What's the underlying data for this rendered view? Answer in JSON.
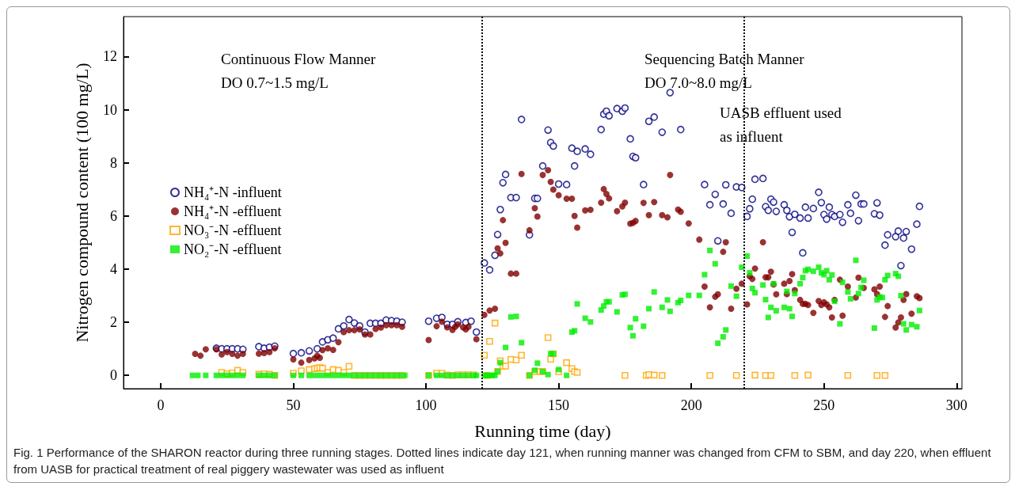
{
  "chart_data": {
    "type": "scatter",
    "xlabel": "Running time (day)",
    "ylabel": "Nitrogen compound content (100 mg/L)",
    "xlim": [
      -14,
      302
    ],
    "xticks": [
      0,
      50,
      100,
      150,
      200,
      250,
      300
    ],
    "ylim": [
      -0.5,
      13.5
    ],
    "yticks": [
      0,
      2,
      4,
      6,
      8,
      10,
      12
    ],
    "grid": false,
    "legend": "left",
    "ref_lines": [
      {
        "axis": "x",
        "value": 121,
        "line_style": "dotted",
        "color": "#000000"
      },
      {
        "axis": "x",
        "value": 220,
        "line_style": "dotted",
        "color": "#000000"
      }
    ],
    "annotations": [
      "Continuous Flow Manner\nDO 0.7~1.5 mg/L",
      "Sequencing Batch Manner\nDO 7.0~8.0 mg/L",
      "UASB effluent used\nas influent",
      "Fig. 1  Performance of the SHARON reactor during three running stages. Dotted lines indicate day 121, when running manner was changed from CFM to SBM, and day 220, when effluent from UASB for practical treatment of real piggery wastewater was used as influent"
    ],
    "series": [
      {
        "name": "NH₄⁺-N -influent",
        "color": "#000080",
        "marker": "circle",
        "x": [
          21,
          23,
          25,
          27,
          29,
          31,
          37,
          39,
          41,
          43,
          50,
          53,
          56,
          59,
          61,
          63,
          65,
          67,
          69,
          71,
          73,
          75,
          77,
          79,
          81,
          83,
          85,
          87,
          89,
          91,
          101,
          104,
          106,
          108,
          110,
          112,
          115,
          117,
          119,
          122,
          124,
          126,
          127,
          128,
          129,
          130,
          132,
          134,
          136,
          139,
          141,
          142,
          144,
          146,
          147,
          148,
          150,
          153,
          155,
          156,
          157,
          160,
          162,
          166,
          167,
          168,
          169,
          172,
          174,
          175,
          177,
          178,
          179,
          182,
          184,
          186,
          189,
          192,
          196,
          205,
          207,
          209,
          210,
          212,
          213,
          215,
          217,
          219,
          221,
          222,
          223,
          224,
          227,
          228,
          229,
          230,
          231,
          232,
          235,
          236,
          237,
          238,
          239,
          241,
          242,
          243,
          244,
          246,
          248,
          249,
          250,
          251,
          252,
          253,
          254,
          256,
          257,
          259,
          260,
          262,
          263,
          264,
          265,
          269,
          270,
          271,
          273,
          274,
          277,
          278,
          279,
          280,
          281,
          283,
          285,
          286
        ],
        "values": [
          1.02,
          1.0,
          1.0,
          1.0,
          1.0,
          0.98,
          1.08,
          1.02,
          1.06,
          1.1,
          0.82,
          0.85,
          0.92,
          1.0,
          1.26,
          1.34,
          1.4,
          1.75,
          1.86,
          2.1,
          1.97,
          1.86,
          1.63,
          1.96,
          1.96,
          1.96,
          2.08,
          2.06,
          2.04,
          2.0,
          2.04,
          2.15,
          2.18,
          1.92,
          1.92,
          2.02,
          1.99,
          2.04,
          1.63,
          4.23,
          3.97,
          4.52,
          5.3,
          6.24,
          7.25,
          7.56,
          6.69,
          6.69,
          9.63,
          5.29,
          6.66,
          6.66,
          7.88,
          9.23,
          8.76,
          8.63,
          7.2,
          7.18,
          8.55,
          7.88,
          8.43,
          8.52,
          8.32,
          9.25,
          9.83,
          9.94,
          9.77,
          10.04,
          9.94,
          10.06,
          8.9,
          8.24,
          8.19,
          7.18,
          9.56,
          9.72,
          9.15,
          10.64,
          9.25,
          7.18,
          6.42,
          6.81,
          5.06,
          6.45,
          7.17,
          6.1,
          7.09,
          7.07,
          5.98,
          6.27,
          6.63,
          7.38,
          7.41,
          6.35,
          6.21,
          6.63,
          6.52,
          6.17,
          6.42,
          6.21,
          5.97,
          5.38,
          6.06,
          5.92,
          4.61,
          6.33,
          5.92,
          6.28,
          6.89,
          6.5,
          6.05,
          5.88,
          6.33,
          6.05,
          5.98,
          6.05,
          5.76,
          6.42,
          6.1,
          6.78,
          5.82,
          6.45,
          6.45,
          6.08,
          6.49,
          6.03,
          4.9,
          5.29,
          5.22,
          5.43,
          4.13,
          5.17,
          5.41,
          4.75,
          5.69,
          6.36
        ]
      },
      {
        "name": "NH₄⁺-N -effluent",
        "color": "#800000",
        "marker": "circle",
        "x": [
          13,
          15,
          17,
          21,
          23,
          25,
          27,
          29,
          31,
          37,
          39,
          41,
          43,
          50,
          53,
          56,
          58,
          59,
          60,
          61,
          63,
          65,
          67,
          69,
          71,
          73,
          75,
          77,
          79,
          81,
          83,
          85,
          87,
          89,
          91,
          101,
          104,
          106,
          108,
          110,
          111,
          112,
          114,
          115,
          116,
          119,
          122,
          124,
          126,
          127,
          128,
          129,
          130,
          132,
          134,
          136,
          139,
          141,
          142,
          144,
          146,
          147,
          148,
          150,
          153,
          155,
          156,
          157,
          160,
          162,
          166,
          167,
          168,
          169,
          172,
          174,
          175,
          177,
          178,
          179,
          182,
          184,
          186,
          189,
          191,
          192,
          195,
          196,
          199,
          203,
          205,
          207,
          209,
          210,
          212,
          213,
          215,
          217,
          219,
          221,
          222,
          223,
          224,
          227,
          228,
          229,
          230,
          231,
          232,
          235,
          236,
          237,
          238,
          239,
          241,
          242,
          243,
          244,
          246,
          248,
          249,
          250,
          251,
          252,
          253,
          254,
          256,
          257,
          259,
          262,
          263,
          265,
          269,
          270,
          271,
          273,
          274,
          277,
          278,
          279,
          280,
          281,
          283,
          285,
          286
        ],
        "values": [
          0.81,
          0.74,
          0.98,
          0.98,
          0.79,
          0.88,
          0.81,
          0.74,
          0.81,
          0.82,
          0.84,
          0.88,
          1.02,
          0.6,
          0.48,
          0.58,
          0.64,
          0.74,
          0.66,
          0.95,
          1.02,
          0.96,
          1.25,
          1.63,
          1.7,
          1.7,
          1.73,
          1.54,
          1.54,
          1.75,
          1.8,
          1.89,
          1.89,
          1.89,
          1.83,
          1.33,
          1.85,
          2.02,
          1.81,
          1.71,
          1.83,
          1.92,
          1.81,
          1.73,
          1.83,
          1.36,
          2.28,
          2.44,
          2.51,
          4.78,
          4.59,
          5.84,
          4.99,
          3.83,
          3.83,
          7.58,
          5.46,
          6.29,
          5.98,
          7.54,
          7.72,
          7.28,
          6.99,
          6.78,
          6.65,
          6.65,
          6.0,
          5.56,
          6.21,
          6.23,
          6.5,
          7.01,
          6.83,
          6.66,
          6.18,
          6.36,
          6.5,
          5.71,
          5.74,
          5.81,
          6.49,
          6.03,
          6.52,
          6.03,
          5.95,
          7.54,
          6.24,
          6.16,
          5.72,
          5.11,
          3.34,
          2.56,
          2.96,
          3.05,
          4.65,
          5.01,
          2.51,
          3.26,
          3.45,
          2.67,
          3.73,
          3.63,
          4.02,
          5.01,
          3.69,
          3.69,
          3.9,
          3.42,
          3.05,
          3.45,
          3.06,
          3.55,
          3.81,
          3.21,
          2.84,
          2.69,
          2.69,
          2.65,
          2.35,
          2.8,
          2.65,
          2.75,
          2.67,
          2.56,
          2.18,
          2.84,
          3.6,
          2.25,
          3.34,
          2.93,
          3.68,
          3.29,
          3.24,
          3.06,
          3.34,
          2.2,
          2.61,
          1.8,
          1.99,
          2.18,
          2.84,
          3.06,
          2.32,
          2.98,
          2.91
        ]
      },
      {
        "name": "NO₃⁻-N -effluent",
        "color": "#ffa500",
        "marker": "square",
        "x": [
          23,
          25,
          27,
          29,
          31,
          37,
          39,
          41,
          43,
          50,
          53,
          56,
          58,
          59,
          60,
          61,
          63,
          65,
          67,
          69,
          71,
          73,
          75,
          77,
          79,
          81,
          83,
          85,
          87,
          89,
          91,
          101,
          104,
          106,
          108,
          110,
          112,
          114,
          116,
          118,
          122,
          123,
          124,
          126,
          127,
          128,
          129,
          130,
          132,
          134,
          136,
          139,
          141,
          143,
          144,
          146,
          147,
          148,
          150,
          153,
          155,
          156,
          157,
          175,
          183,
          184,
          186,
          189,
          207,
          217,
          224,
          228,
          230,
          239,
          244,
          259,
          270,
          273
        ],
        "values": [
          0.11,
          0.06,
          0.09,
          0.19,
          0.11,
          0.04,
          0.06,
          0.04,
          0,
          0.08,
          0.17,
          0.22,
          0.25,
          0.27,
          0.29,
          0.27,
          0.11,
          0.22,
          0.19,
          0.11,
          0.34,
          0,
          0,
          0,
          0,
          0,
          0,
          0,
          0,
          0,
          0,
          0,
          0.08,
          0.08,
          0.01,
          0,
          0.02,
          0.02,
          0.02,
          0.02,
          0.76,
          0,
          1.28,
          1.97,
          0.15,
          0.55,
          0.35,
          0.35,
          0.6,
          0.58,
          0.76,
          0,
          0.14,
          0.15,
          0.15,
          1.42,
          0.61,
          0.81,
          0.14,
          0.48,
          0.25,
          0.14,
          0.11,
          0,
          0,
          0.03,
          0.01,
          0,
          0,
          0,
          0.01,
          0,
          0,
          0,
          0.01,
          0,
          0,
          0
        ]
      },
      {
        "name": "NO₂⁻-N -effluent",
        "color": "#00ee00",
        "marker": "square",
        "x": [
          12,
          14,
          17,
          21,
          23,
          25,
          27,
          29,
          31,
          37,
          39,
          41,
          43,
          50,
          53,
          56,
          58,
          60,
          62,
          64,
          66,
          68,
          70,
          72,
          74,
          76,
          78,
          80,
          82,
          84,
          86,
          88,
          90,
          92,
          101,
          104,
          106,
          108,
          110,
          112,
          114,
          116,
          118,
          119,
          122,
          123,
          124,
          125,
          126,
          127,
          128,
          130,
          132,
          134,
          136,
          139,
          141,
          142,
          144,
          146,
          147,
          148,
          150,
          153,
          155,
          156,
          157,
          160,
          162,
          166,
          167,
          168,
          169,
          172,
          174,
          175,
          177,
          178,
          179,
          182,
          184,
          186,
          189,
          191,
          192,
          195,
          196,
          199,
          203,
          205,
          207,
          209,
          210,
          212,
          213,
          215,
          217,
          219,
          221,
          222,
          223,
          224,
          227,
          228,
          229,
          230,
          231,
          232,
          235,
          236,
          237,
          238,
          239,
          241,
          242,
          243,
          244,
          246,
          248,
          249,
          250,
          251,
          252,
          253,
          254,
          256,
          257,
          259,
          260,
          262,
          263,
          264,
          265,
          269,
          270,
          271,
          272,
          273,
          274,
          277,
          278,
          279,
          280,
          281,
          283,
          285,
          286
        ],
        "values": [
          0,
          0,
          0,
          0,
          0,
          0,
          0,
          0,
          0,
          0,
          0,
          0,
          0,
          0,
          0,
          0,
          0,
          0,
          0,
          0,
          0,
          0,
          0,
          0,
          0,
          0,
          0,
          0,
          0,
          0,
          0,
          0,
          0,
          0,
          0,
          0,
          0,
          0,
          0,
          0,
          0,
          0,
          0,
          0,
          0,
          0,
          0,
          0,
          0,
          0.15,
          0.48,
          1.05,
          2.2,
          2.22,
          1.23,
          0,
          0.19,
          0.46,
          0.14,
          0.03,
          0.82,
          0.81,
          0.22,
          0,
          1.63,
          1.68,
          2.69,
          2.15,
          2.01,
          2.46,
          2.61,
          2.77,
          2.77,
          2.39,
          3.03,
          3.05,
          1.8,
          1.49,
          2.13,
          1.85,
          2.51,
          3.14,
          2.56,
          2.84,
          2.41,
          2.74,
          2.82,
          3.01,
          3.01,
          3.79,
          4.7,
          4.2,
          1.21,
          1.45,
          1.71,
          3.36,
          2.98,
          4.07,
          4.49,
          3.86,
          3.27,
          3.11,
          3.4,
          2.85,
          2.18,
          2.56,
          3.45,
          2.43,
          2.56,
          3.16,
          2.51,
          2.22,
          3.08,
          3.45,
          3.68,
          3.94,
          3.99,
          3.92,
          4.07,
          3.86,
          3.79,
          3.94,
          3.6,
          3.78,
          2.79,
          1.94,
          3.5,
          3.14,
          2.88,
          4.33,
          3.08,
          3.31,
          3.58,
          1.78,
          2.84,
          2.95,
          2.93,
          3.6,
          3.76,
          3.83,
          3.73,
          3.0,
          1.94,
          1.71,
          1.91,
          1.83,
          2.44
        ]
      }
    ]
  }
}
